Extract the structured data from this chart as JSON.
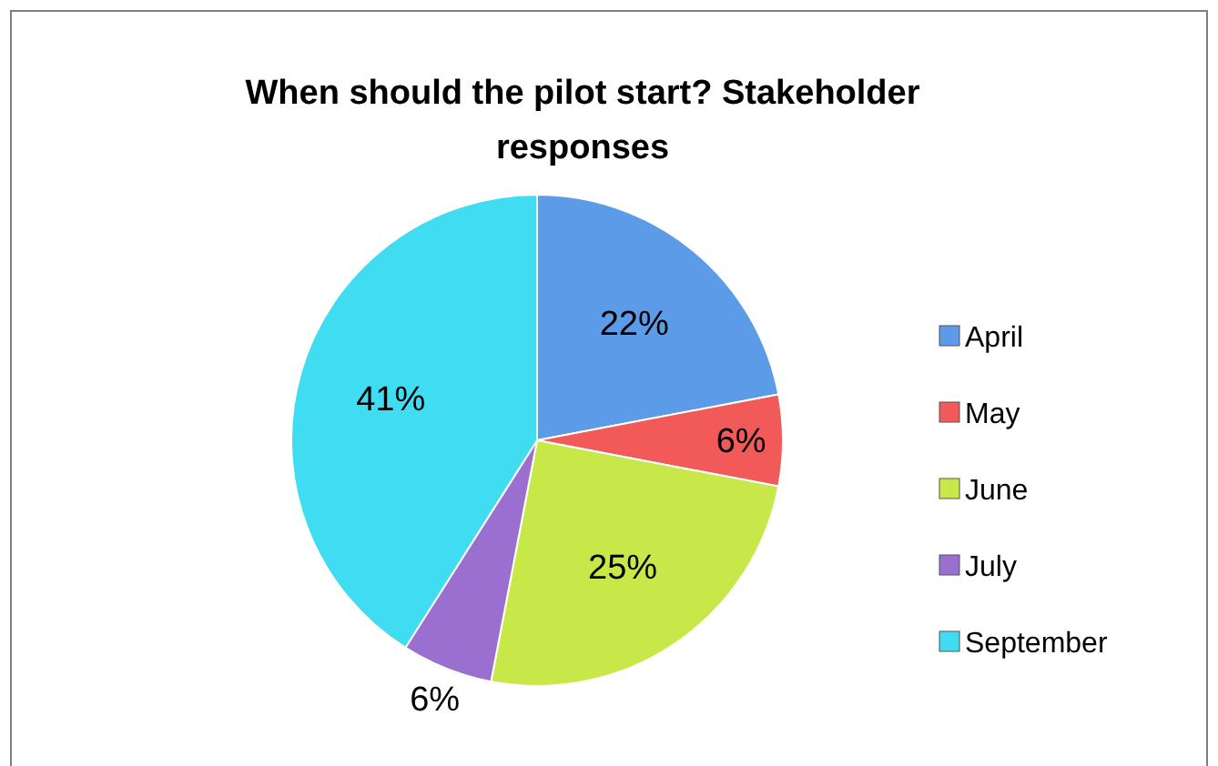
{
  "chart_data": {
    "type": "pie",
    "title": "When should the pilot start? Stakeholder responses",
    "categories": [
      "April",
      "May",
      "June",
      "July",
      "September"
    ],
    "values": [
      22,
      6,
      25,
      6,
      41
    ],
    "value_labels": [
      "22%",
      "6%",
      "25%",
      "6%",
      "41%"
    ],
    "colors": [
      "#5b9be8",
      "#f25a5a",
      "#c8e84a",
      "#9a6fcf",
      "#3fdcf2"
    ],
    "legend": "right"
  }
}
